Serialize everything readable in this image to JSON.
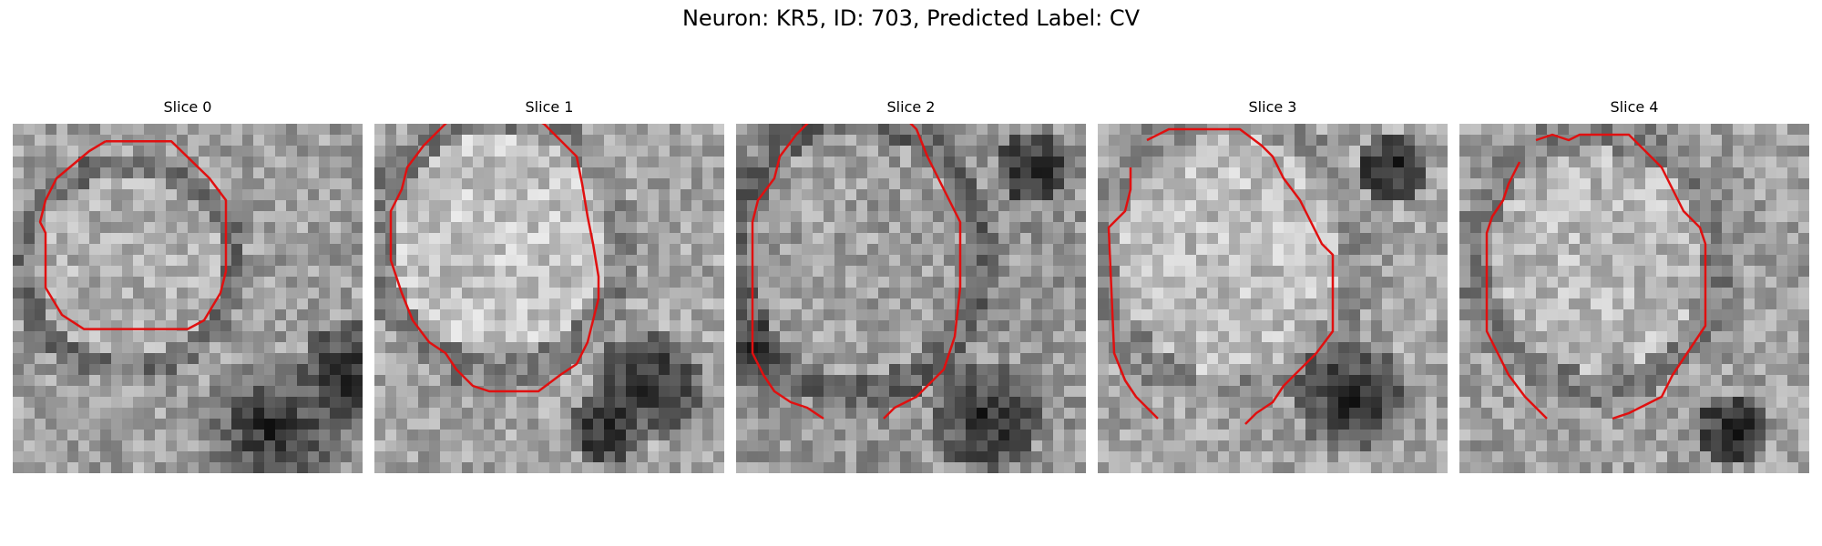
{
  "figure": {
    "title": "Neuron: KR5, ID: 703, Predicted Label: CV"
  },
  "colors": {
    "contour": "#e01010",
    "background": "#ffffff"
  },
  "panels": [
    {
      "title": "Slice 0"
    },
    {
      "title": "Slice 1"
    },
    {
      "title": "Slice 2"
    },
    {
      "title": "Slice 3"
    },
    {
      "title": "Slice 4"
    }
  ]
}
